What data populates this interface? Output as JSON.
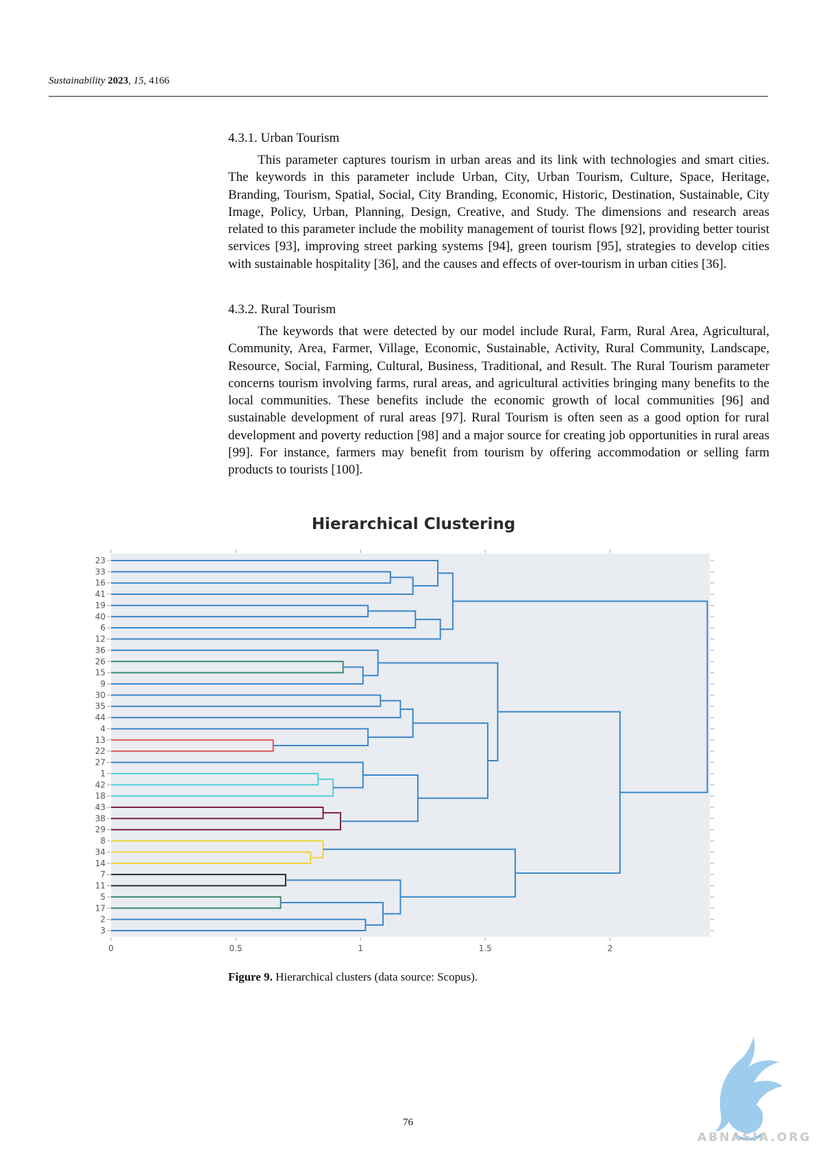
{
  "header": {
    "journal": "Sustainability",
    "year": "2023",
    "volume": "15",
    "article": "4166"
  },
  "sections": [
    {
      "title": "4.3.1. Urban Tourism",
      "paragraph": "This parameter captures tourism in urban areas and its link with technologies and smart cities. The keywords in this parameter include Urban, City, Urban Tourism, Culture, Space, Heritage, Branding, Tourism, Spatial, Social, City Branding, Economic, Historic, Destination, Sustainable, City Image, Policy, Urban, Planning, Design, Creative, and Study. The dimensions and research areas related to this parameter include the mobility management of tourist flows [92], providing better tourist services [93], improving street parking systems [94], green tourism [95], strategies to develop cities with sustainable hospitality [36], and the causes and effects of over-tourism in urban cities [36]."
    },
    {
      "title": "4.3.2. Rural Tourism",
      "paragraph": "The keywords that were detected by our model include Rural, Farm, Rural Area, Agricultural, Community, Area, Farmer, Village, Economic, Sustainable, Activity, Rural Community, Landscape, Resource, Social, Farming, Cultural, Business, Traditional, and Result. The Rural Tourism parameter concerns tourism involving farms, rural areas, and agricultural activities bringing many benefits to the local communities. These benefits include the economic growth of local communities [96] and sustainable development of rural areas [97]. Rural Tourism is often seen as a good option for rural development and poverty reduction [98] and a major source for creating job opportunities in rural areas [99]. For instance, farmers may benefit from tourism by offering accommodation or selling farm products to tourists [100]."
    }
  ],
  "figure": {
    "label": "Figure 9.",
    "caption": "Hierarchical clusters (data source: Scopus)."
  },
  "page_number": "76",
  "watermark": "ABNASIA.ORG",
  "chart_data": {
    "type": "dendrogram",
    "title": "Hierarchical Clustering",
    "orientation": "horizontal",
    "xlim": [
      0,
      2.4
    ],
    "x_ticks": [
      0,
      0.5,
      1,
      1.5,
      2
    ],
    "leaves": [
      "23",
      "33",
      "16",
      "41",
      "19",
      "40",
      "6",
      "12",
      "36",
      "26",
      "15",
      "9",
      "30",
      "35",
      "44",
      "4",
      "13",
      "22",
      "27",
      "1",
      "42",
      "18",
      "43",
      "38",
      "29",
      "8",
      "34",
      "14",
      "7",
      "11",
      "5",
      "17",
      "2",
      "3"
    ],
    "colors": {
      "blue": "#3a86c8",
      "green": "#3d8a6e",
      "red": "#e05a5a",
      "cyan": "#4fd0d6",
      "maroon": "#7d1e45",
      "yellow": "#f2d43a",
      "black": "#2b2b2b"
    },
    "merges": [
      {
        "id": "A",
        "children": [
          "33",
          "16"
        ],
        "height": 1.12,
        "color": "blue"
      },
      {
        "id": "B",
        "children": [
          "A",
          "41"
        ],
        "height": 1.21,
        "color": "blue"
      },
      {
        "id": "C",
        "children": [
          "23",
          "B"
        ],
        "height": 1.31,
        "color": "blue"
      },
      {
        "id": "D",
        "children": [
          "19",
          "40"
        ],
        "height": 1.03,
        "color": "blue"
      },
      {
        "id": "E",
        "children": [
          "D",
          "6"
        ],
        "height": 1.22,
        "color": "blue"
      },
      {
        "id": "F",
        "children": [
          "E",
          "12"
        ],
        "height": 1.32,
        "color": "blue"
      },
      {
        "id": "G",
        "children": [
          "C",
          "F"
        ],
        "height": 1.37,
        "color": "blue"
      },
      {
        "id": "H",
        "children": [
          "26",
          "15"
        ],
        "height": 0.93,
        "color": "green"
      },
      {
        "id": "I",
        "children": [
          "H",
          "9"
        ],
        "height": 1.01,
        "color": "blue"
      },
      {
        "id": "J",
        "children": [
          "36",
          "I"
        ],
        "height": 1.07,
        "color": "blue"
      },
      {
        "id": "K",
        "children": [
          "30",
          "35"
        ],
        "height": 1.08,
        "color": "blue"
      },
      {
        "id": "L",
        "children": [
          "K",
          "44"
        ],
        "height": 1.16,
        "color": "blue"
      },
      {
        "id": "M",
        "children": [
          "13",
          "22"
        ],
        "height": 0.65,
        "color": "red"
      },
      {
        "id": "N",
        "children": [
          "4",
          "M"
        ],
        "height": 1.03,
        "color": "blue"
      },
      {
        "id": "O",
        "children": [
          "L",
          "N"
        ],
        "height": 1.21,
        "color": "blue"
      },
      {
        "id": "P",
        "children": [
          "1",
          "42"
        ],
        "height": 0.83,
        "color": "cyan"
      },
      {
        "id": "Q",
        "children": [
          "P",
          "18"
        ],
        "height": 0.89,
        "color": "cyan"
      },
      {
        "id": "R",
        "children": [
          "27",
          "Q"
        ],
        "height": 1.01,
        "color": "blue"
      },
      {
        "id": "S",
        "children": [
          "43",
          "38"
        ],
        "height": 0.85,
        "color": "maroon"
      },
      {
        "id": "T",
        "children": [
          "S",
          "29"
        ],
        "height": 0.92,
        "color": "maroon"
      },
      {
        "id": "U",
        "children": [
          "R",
          "T"
        ],
        "height": 1.23,
        "color": "blue"
      },
      {
        "id": "V",
        "children": [
          "O",
          "U"
        ],
        "height": 1.51,
        "color": "blue"
      },
      {
        "id": "W",
        "children": [
          "J",
          "V"
        ],
        "height": 1.55,
        "color": "blue"
      },
      {
        "id": "X",
        "children": [
          "34",
          "14"
        ],
        "height": 0.8,
        "color": "yellow"
      },
      {
        "id": "Y",
        "children": [
          "8",
          "X"
        ],
        "height": 0.85,
        "color": "yellow"
      },
      {
        "id": "Z",
        "children": [
          "7",
          "11"
        ],
        "height": 0.7,
        "color": "black"
      },
      {
        "id": "AA",
        "children": [
          "5",
          "17"
        ],
        "height": 0.68,
        "color": "green"
      },
      {
        "id": "AB",
        "children": [
          "2",
          "3"
        ],
        "height": 1.02,
        "color": "blue"
      },
      {
        "id": "AC",
        "children": [
          "AA",
          "AB"
        ],
        "height": 1.09,
        "color": "blue"
      },
      {
        "id": "AD",
        "children": [
          "Z",
          "AC"
        ],
        "height": 1.16,
        "color": "blue"
      },
      {
        "id": "AE",
        "children": [
          "Y",
          "AD"
        ],
        "height": 1.62,
        "color": "blue"
      },
      {
        "id": "AF",
        "children": [
          "W",
          "AE"
        ],
        "height": 2.04,
        "color": "blue"
      },
      {
        "id": "AG",
        "children": [
          "G",
          "AF"
        ],
        "height": 2.39,
        "color": "blue"
      }
    ]
  }
}
